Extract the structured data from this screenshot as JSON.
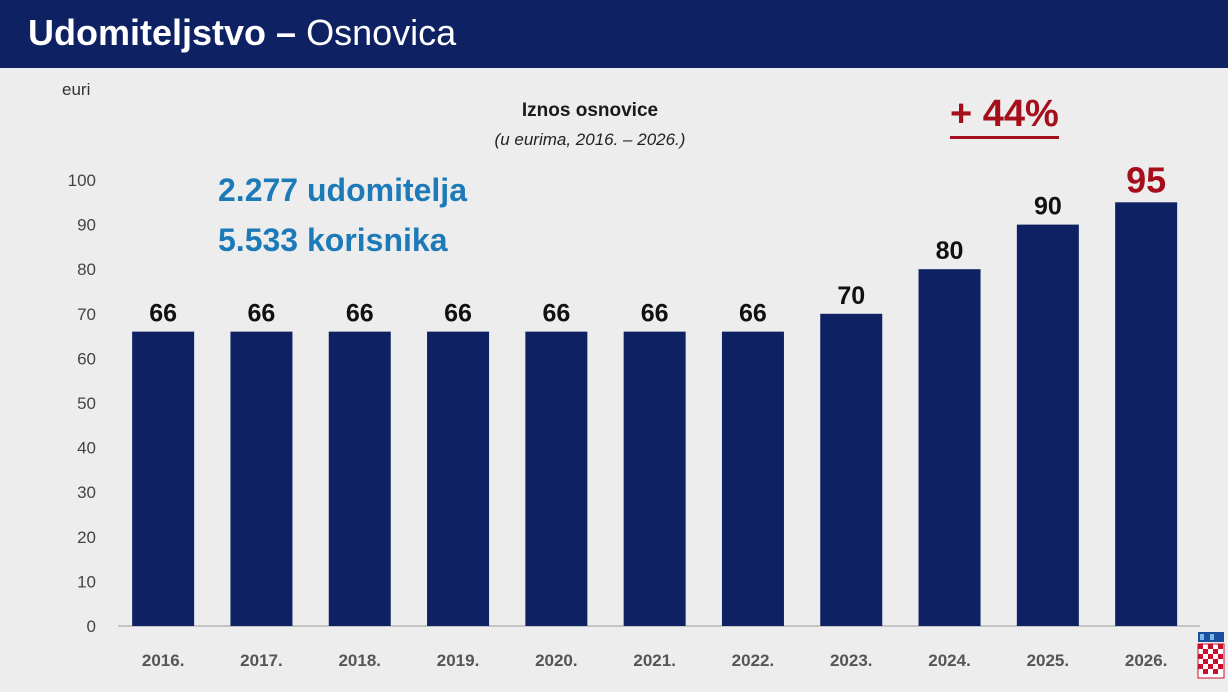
{
  "header": {
    "title_bold": "Udomiteljstvo –",
    "title_light": "Osnovica"
  },
  "unit_label": "euri",
  "increase_label": "+ 44%",
  "stats": {
    "fosters": "2.277 udomitelja",
    "beneficiaries": "5.533 korisnika"
  },
  "colors": {
    "header": "#0d2163",
    "bars": "#0d2163",
    "highlight": "#a50f1b",
    "stats": "#1d7ab8"
  },
  "chart_data": {
    "type": "bar",
    "title": "Iznos osnovice",
    "subtitle": "(u eurima, 2016. – 2026.)",
    "ylabel": "euri",
    "categories": [
      "2016.",
      "2017.",
      "2018.",
      "2019.",
      "2020.",
      "2021.",
      "2022.",
      "2023.",
      "2024.",
      "2025.",
      "2026."
    ],
    "values": [
      66,
      66,
      66,
      66,
      66,
      66,
      66,
      70,
      80,
      90,
      95
    ],
    "data_labels": [
      "66",
      "66",
      "66",
      "66",
      "66",
      "66",
      "66",
      "70",
      "80",
      "90",
      "95"
    ],
    "highlighted_label": "2026.",
    "ylim": [
      0,
      100
    ],
    "yticks": [
      0,
      10,
      20,
      30,
      40,
      50,
      60,
      70,
      80,
      90,
      100
    ],
    "grid": false,
    "legend": "none"
  }
}
